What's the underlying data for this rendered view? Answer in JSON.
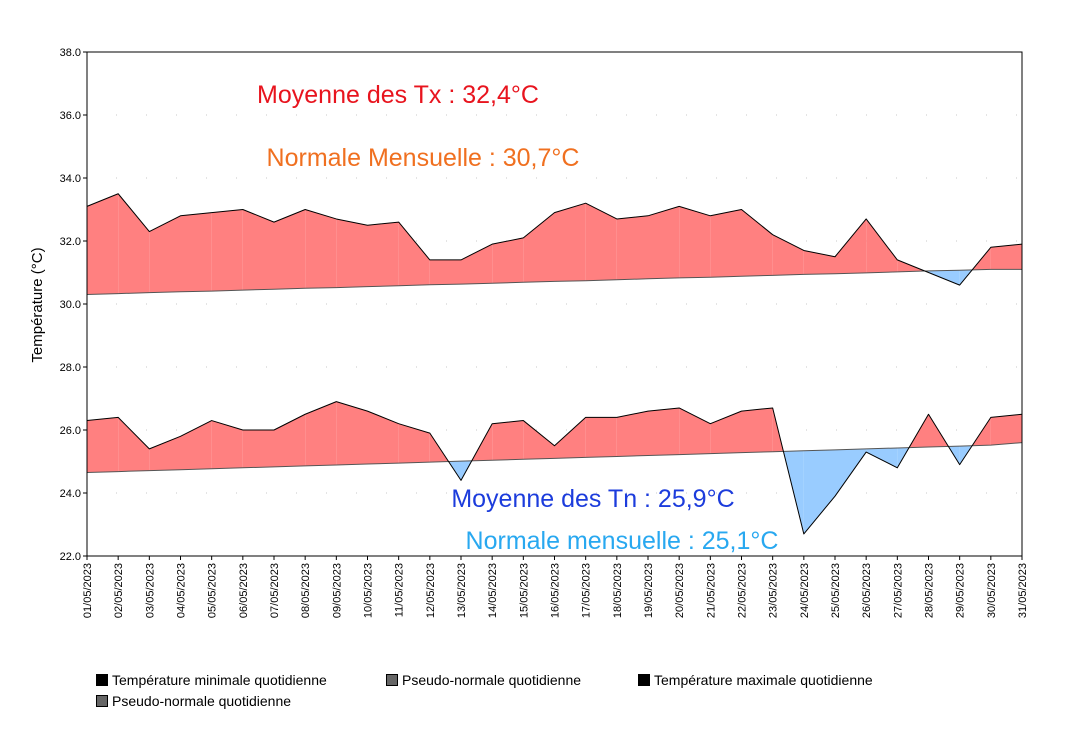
{
  "chart_data": {
    "type": "area",
    "ylabel": "Température (°C)",
    "xlabel": "",
    "ylim": [
      22.0,
      38.0
    ],
    "yticks": [
      "22.0",
      "24.0",
      "26.0",
      "28.0",
      "30.0",
      "32.0",
      "34.0",
      "36.0",
      "38.0"
    ],
    "categories": [
      "01/05/2023",
      "02/05/2023",
      "03/05/2023",
      "04/05/2023",
      "05/05/2023",
      "06/05/2023",
      "07/05/2023",
      "08/05/2023",
      "09/05/2023",
      "10/05/2023",
      "11/05/2023",
      "12/05/2023",
      "13/05/2023",
      "14/05/2023",
      "15/05/2023",
      "16/05/2023",
      "17/05/2023",
      "18/05/2023",
      "19/05/2023",
      "20/05/2023",
      "21/05/2023",
      "22/05/2023",
      "23/05/2023",
      "24/05/2023",
      "25/05/2023",
      "26/05/2023",
      "27/05/2023",
      "28/05/2023",
      "29/05/2023",
      "30/05/2023",
      "31/05/2023"
    ],
    "series": [
      {
        "name": "Température maximale quotidienne",
        "values": [
          33.1,
          33.5,
          32.3,
          32.8,
          32.9,
          33.0,
          32.6,
          33.0,
          32.7,
          32.5,
          32.6,
          31.4,
          31.4,
          31.9,
          32.1,
          32.9,
          33.2,
          32.7,
          32.8,
          33.1,
          32.8,
          33.0,
          32.2,
          31.7,
          31.5,
          32.7,
          31.4,
          31.0,
          30.6,
          31.8,
          31.9
        ]
      },
      {
        "name": "Pseudo-normale quotidienne (Tx)",
        "values": [
          30.3,
          30.33,
          30.36,
          30.39,
          30.41,
          30.44,
          30.47,
          30.5,
          30.52,
          30.55,
          30.58,
          30.61,
          30.63,
          30.66,
          30.69,
          30.72,
          30.74,
          30.77,
          30.8,
          30.83,
          30.85,
          30.88,
          30.91,
          30.94,
          30.96,
          30.99,
          31.02,
          31.05,
          31.07,
          31.1,
          31.1
        ]
      },
      {
        "name": "Température minimale quotidienne",
        "values": [
          26.3,
          26.4,
          25.4,
          25.8,
          26.3,
          26.0,
          26.0,
          26.5,
          26.9,
          26.6,
          26.2,
          25.9,
          24.4,
          26.2,
          26.3,
          25.5,
          26.4,
          26.4,
          26.6,
          26.7,
          26.2,
          26.6,
          26.7,
          22.7,
          23.9,
          25.3,
          24.8,
          26.5,
          24.9,
          26.4,
          26.5
        ]
      },
      {
        "name": "Pseudo-normale quotidienne (Tn)",
        "values": [
          24.65,
          24.68,
          24.71,
          24.74,
          24.77,
          24.8,
          24.83,
          24.86,
          24.89,
          24.92,
          24.95,
          24.98,
          25.01,
          25.04,
          25.07,
          25.1,
          25.13,
          25.16,
          25.19,
          25.22,
          25.25,
          25.28,
          25.31,
          25.34,
          25.37,
          25.4,
          25.43,
          25.46,
          25.49,
          25.52,
          25.6
        ]
      }
    ],
    "colors": {
      "above": "#ff8080",
      "below": "#99ccff",
      "line": "#000000",
      "normal_line": "#555555",
      "grid": "#c8c8c8"
    },
    "annotations": [
      {
        "id": "tx-mean",
        "text": "Moyenne des Tx : 32,4°C",
        "color": "#e8141e"
      },
      {
        "id": "tx-normal",
        "text": "Normale Mensuelle : 30,7°C",
        "color": "#f07020"
      },
      {
        "id": "tn-mean",
        "text": "Moyenne des Tn : 25,9°C",
        "color": "#1c3cdc"
      },
      {
        "id": "tn-normal",
        "text": "Normale mensuelle : 25,1°C",
        "color": "#28a8f0"
      }
    ]
  },
  "legend": [
    {
      "label": "Température minimale quotidienne",
      "color": "#000000"
    },
    {
      "label": "Pseudo-normale quotidienne",
      "color": "#666666"
    },
    {
      "label": "Température maximale quotidienne",
      "color": "#000000"
    },
    {
      "label": "Pseudo-normale quotidienne",
      "color": "#666666"
    }
  ]
}
